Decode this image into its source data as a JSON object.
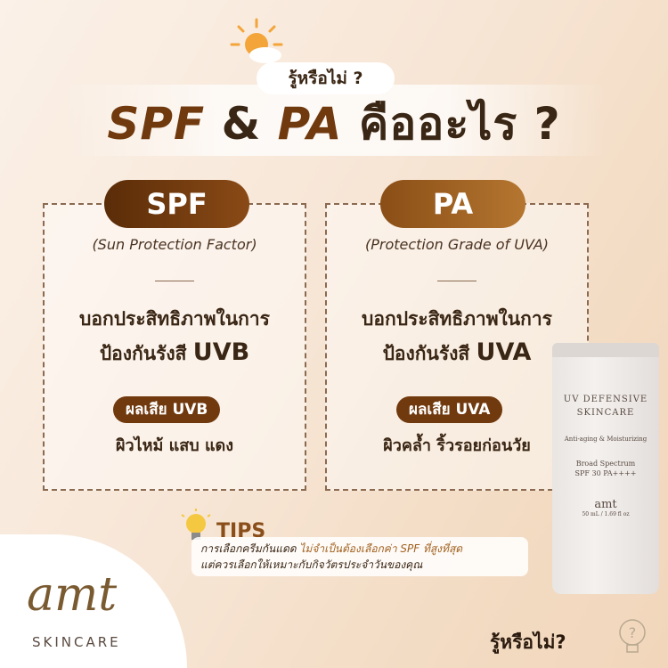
{
  "header": {
    "kicker": "รู้หรือไม่ ?",
    "title_spf": "SPF",
    "title_amp": "&",
    "title_pa": "PA",
    "title_rest": "คืออะไร ?"
  },
  "spf": {
    "label": "SPF",
    "full": "(Sun Protection Factor)",
    "desc1": "บอกประสิทธิภาพในการ",
    "desc2": "ป้องกันรังสี",
    "ray": "UVB",
    "effect_badge": "ผลเสีย UVB",
    "effect": "ผิวไหม้ แสบ แดง"
  },
  "pa": {
    "label": "PA",
    "full": "(Protection Grade of UVA)",
    "desc1": "บอกประสิทธิภาพในการ",
    "desc2": "ป้องกันรังสี",
    "ray": "UVA",
    "effect_badge": "ผลเสีย UVA",
    "effect": "ผิวคล้ำ ริ้วรอยก่อนวัย"
  },
  "tips": {
    "label": "TIPS",
    "line1_a": "การเลือกครีมกันแดด ",
    "line1_b": "ไม่จำเป็นต้องเลือกค่า SPF ที่สูงที่สุด",
    "line2": "แต่ควรเลือกให้เหมาะกับกิจวัตรประจำวันของคุณ"
  },
  "product": {
    "name1": "UV DEFENSIVE",
    "name2": "SKINCARE",
    "tagline": "Anti-aging & Moisturizing",
    "spec1": "Broad Spectrum",
    "spec2": "SPF 30 PA++++",
    "brand": "amt",
    "size": "50 mL / 1.69 fl oz"
  },
  "brand": {
    "logo": "amt",
    "sub": "SKINCARE"
  },
  "footer": {
    "label": "รู้หรือไม่?"
  },
  "colors": {
    "accent": "#70390e",
    "pa_accent": "#a2611f",
    "background": "#f5e4d2"
  }
}
